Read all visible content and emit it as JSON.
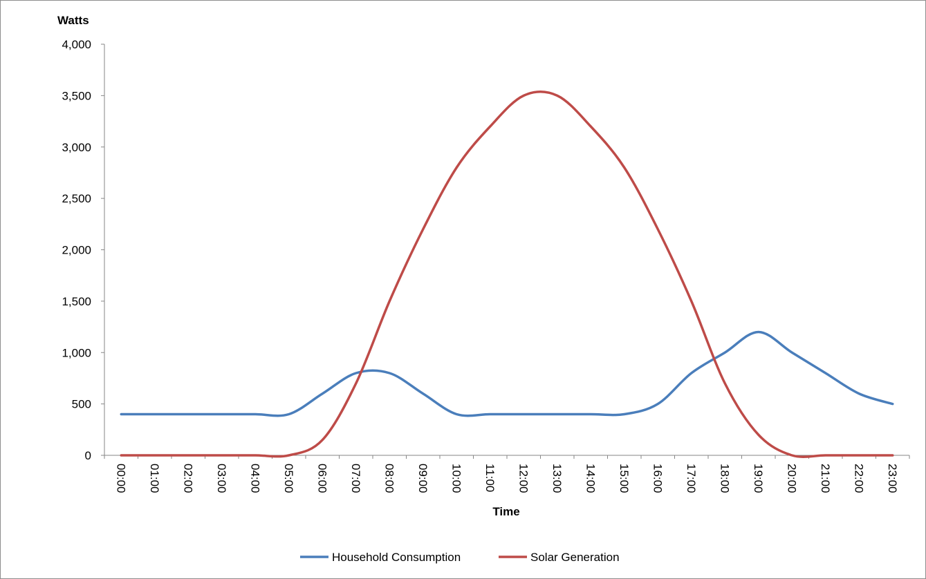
{
  "chart_data": {
    "type": "line",
    "title": "",
    "xlabel": "Time",
    "ylabel": "Watts",
    "ylim": [
      0,
      4000
    ],
    "yticks": [
      0,
      500,
      1000,
      1500,
      2000,
      2500,
      3000,
      3500,
      4000
    ],
    "ytick_labels": [
      "0",
      "500",
      "1,000",
      "1,500",
      "2,000",
      "2,500",
      "3,000",
      "3,500",
      "4,000"
    ],
    "grid": false,
    "smooth": true,
    "legend_position": "bottom",
    "categories": [
      "00:00",
      "01:00",
      "02:00",
      "03:00",
      "04:00",
      "05:00",
      "06:00",
      "07:00",
      "08:00",
      "09:00",
      "10:00",
      "11:00",
      "12:00",
      "13:00",
      "14:00",
      "15:00",
      "16:00",
      "17:00",
      "18:00",
      "19:00",
      "20:00",
      "21:00",
      "22:00",
      "23:00"
    ],
    "series": [
      {
        "name": "Household Consumption",
        "color": "#4a7ebb",
        "values": [
          400,
          400,
          400,
          400,
          400,
          400,
          600,
          800,
          800,
          600,
          400,
          400,
          400,
          400,
          400,
          400,
          500,
          800,
          1000,
          1200,
          1000,
          800,
          600,
          500
        ]
      },
      {
        "name": "Solar Generation",
        "color": "#be4b48",
        "values": [
          0,
          0,
          0,
          0,
          0,
          0,
          150,
          700,
          1500,
          2200,
          2800,
          3200,
          3500,
          3500,
          3200,
          2800,
          2200,
          1500,
          700,
          200,
          0,
          0,
          0,
          0
        ]
      }
    ]
  }
}
